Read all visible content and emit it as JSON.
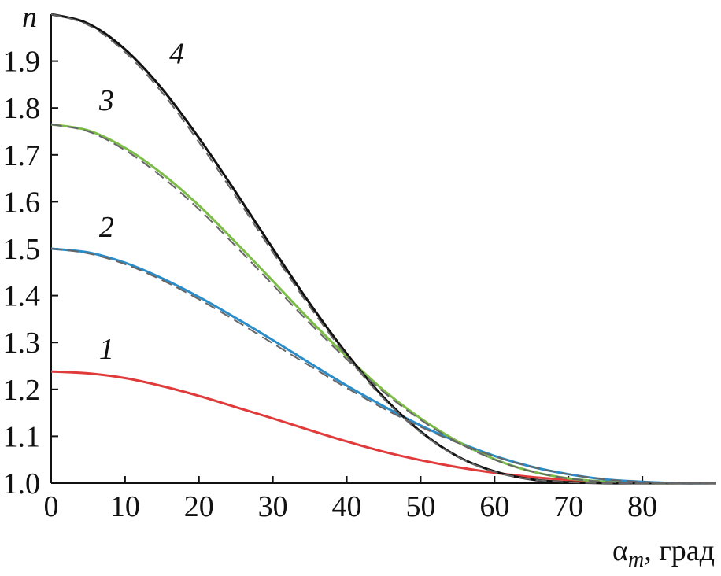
{
  "chart_data": {
    "type": "line",
    "title": "",
    "ylabel": "n",
    "xlabel_main": "α",
    "xlabel_sub": "m",
    "xlabel_unit": ", град",
    "xlim": [
      0,
      90
    ],
    "ylim": [
      1.0,
      2.0
    ],
    "x_ticks": [
      0,
      10,
      20,
      30,
      40,
      50,
      60,
      70,
      80
    ],
    "y_ticks": [
      "1.0",
      "1.1",
      "1.2",
      "1.3",
      "1.4",
      "1.5",
      "1.6",
      "1.7",
      "1.8",
      "1.9"
    ],
    "grid": false,
    "x": [
      0,
      5,
      10,
      15,
      20,
      25,
      30,
      35,
      40,
      45,
      50,
      55,
      60,
      65,
      70,
      75,
      80,
      85,
      90
    ],
    "series": [
      {
        "name": "1",
        "color": "#e03a3a",
        "style": "solid",
        "values": [
          1.238,
          1.234,
          1.224,
          1.207,
          1.186,
          1.162,
          1.138,
          1.113,
          1.089,
          1.067,
          1.049,
          1.034,
          1.022,
          1.013,
          1.007,
          1.003,
          1.001,
          1.0,
          1.0
        ]
      },
      {
        "name": "2",
        "color": "#2a8cc8",
        "style": "solid",
        "values": [
          1.5,
          1.492,
          1.47,
          1.437,
          1.397,
          1.352,
          1.305,
          1.256,
          1.208,
          1.164,
          1.123,
          1.088,
          1.058,
          1.035,
          1.019,
          1.008,
          1.003,
          1.0,
          1.0
        ]
      },
      {
        "name": "3",
        "color": "#7cbd48",
        "style": "solid",
        "values": [
          1.765,
          1.752,
          1.715,
          1.66,
          1.592,
          1.513,
          1.431,
          1.348,
          1.27,
          1.198,
          1.138,
          1.089,
          1.051,
          1.025,
          1.01,
          1.003,
          1.0,
          1.0,
          1.0
        ]
      },
      {
        "name": "4",
        "color": "#111111",
        "style": "solid",
        "values": [
          2.0,
          1.98,
          1.925,
          1.841,
          1.736,
          1.62,
          1.5,
          1.383,
          1.276,
          1.183,
          1.11,
          1.057,
          1.025,
          1.008,
          1.002,
          1.0,
          1.0,
          1.0,
          1.0
        ]
      },
      {
        "name": "",
        "color": "#666666",
        "style": "dashed",
        "values": [
          1.5,
          1.49,
          1.467,
          1.433,
          1.392,
          1.346,
          1.298,
          1.25,
          1.203,
          1.159,
          1.12,
          1.086,
          1.057,
          1.035,
          1.019,
          1.008,
          1.003,
          1.0,
          1.0
        ]
      },
      {
        "name": "",
        "color": "#666666",
        "style": "dashed",
        "values": [
          1.765,
          1.75,
          1.71,
          1.653,
          1.584,
          1.505,
          1.423,
          1.341,
          1.264,
          1.194,
          1.135,
          1.087,
          1.05,
          1.025,
          1.01,
          1.003,
          1.0,
          1.0,
          1.0
        ]
      },
      {
        "name": "",
        "color": "#666666",
        "style": "dashed",
        "values": [
          2.0,
          1.977,
          1.919,
          1.833,
          1.727,
          1.611,
          1.492,
          1.376,
          1.271,
          1.18,
          1.108,
          1.056,
          1.024,
          1.008,
          1.002,
          1.0,
          1.0,
          1.0,
          1.0
        ]
      }
    ],
    "curve_labels": [
      {
        "text": "1",
        "x": 7.5,
        "y": 1.265
      },
      {
        "text": "2",
        "x": 7.5,
        "y": 1.525
      },
      {
        "text": "3",
        "x": 7.5,
        "y": 1.795
      },
      {
        "text": "4",
        "x": 17,
        "y": 1.895
      }
    ]
  }
}
